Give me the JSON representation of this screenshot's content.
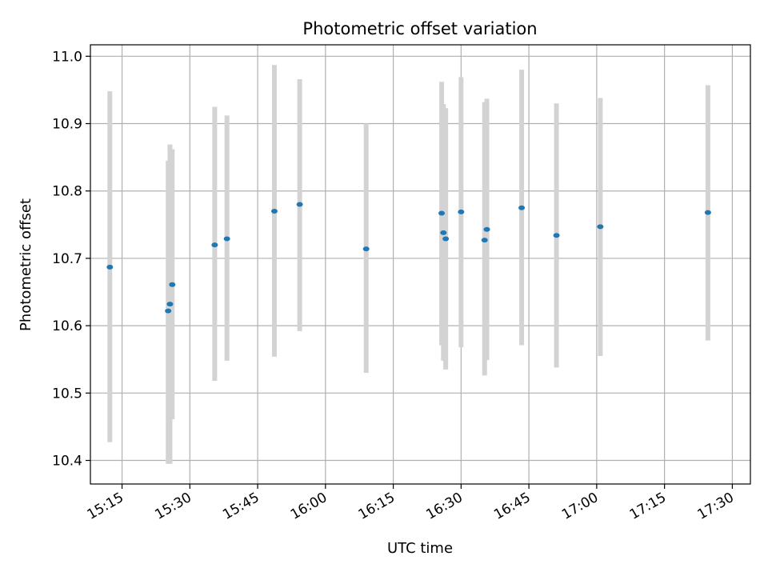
{
  "chart_data": {
    "type": "scatter",
    "title": "Photometric offset variation",
    "xlabel": "UTC time",
    "ylabel": "Photometric offset",
    "grid": true,
    "xlim": [
      "15:08",
      "17:34"
    ],
    "ylim": [
      10.365,
      11.017
    ],
    "x_ticks": [
      "15:15",
      "15:30",
      "15:45",
      "16:00",
      "16:15",
      "16:30",
      "16:45",
      "17:00",
      "17:15",
      "17:30"
    ],
    "y_ticks": [
      10.4,
      10.5,
      10.6,
      10.7,
      10.8,
      10.9,
      11.0
    ],
    "y_tick_labels": [
      "10.4",
      "10.5",
      "10.6",
      "10.7",
      "10.8",
      "10.9",
      "11.0"
    ],
    "point_color": "#1f77b4",
    "errorbar_color": "#d3d3d3",
    "points": [
      {
        "x": "15:12.3",
        "y": 10.687,
        "y_low": 10.427,
        "y_high": 10.948
      },
      {
        "x": "15:25.2",
        "y": 10.622,
        "y_low": 10.395,
        "y_high": 10.845
      },
      {
        "x": "15:25.6",
        "y": 10.632,
        "y_low": 10.395,
        "y_high": 10.869
      },
      {
        "x": "15:26.1",
        "y": 10.661,
        "y_low": 10.461,
        "y_high": 10.862
      },
      {
        "x": "15:35.5",
        "y": 10.72,
        "y_low": 10.518,
        "y_high": 10.925
      },
      {
        "x": "15:38.2",
        "y": 10.729,
        "y_low": 10.548,
        "y_high": 10.912
      },
      {
        "x": "15:48.7",
        "y": 10.77,
        "y_low": 10.554,
        "y_high": 10.987
      },
      {
        "x": "15:54.3",
        "y": 10.78,
        "y_low": 10.592,
        "y_high": 10.966
      },
      {
        "x": "16:09.0",
        "y": 10.714,
        "y_low": 10.53,
        "y_high": 10.9
      },
      {
        "x": "16:25.7",
        "y": 10.767,
        "y_low": 10.571,
        "y_high": 10.962
      },
      {
        "x": "16:26.1",
        "y": 10.738,
        "y_low": 10.548,
        "y_high": 10.929
      },
      {
        "x": "16:26.6",
        "y": 10.729,
        "y_low": 10.535,
        "y_high": 10.923
      },
      {
        "x": "16:30.0",
        "y": 10.769,
        "y_low": 10.568,
        "y_high": 10.969
      },
      {
        "x": "16:35.2",
        "y": 10.727,
        "y_low": 10.526,
        "y_high": 10.932
      },
      {
        "x": "16:35.7",
        "y": 10.743,
        "y_low": 10.549,
        "y_high": 10.937
      },
      {
        "x": "16:43.4",
        "y": 10.775,
        "y_low": 10.571,
        "y_high": 10.98
      },
      {
        "x": "16:51.1",
        "y": 10.734,
        "y_low": 10.538,
        "y_high": 10.93
      },
      {
        "x": "17:00.8",
        "y": 10.747,
        "y_low": 10.555,
        "y_high": 10.938
      },
      {
        "x": "17:24.6",
        "y": 10.768,
        "y_low": 10.578,
        "y_high": 10.957
      }
    ]
  }
}
